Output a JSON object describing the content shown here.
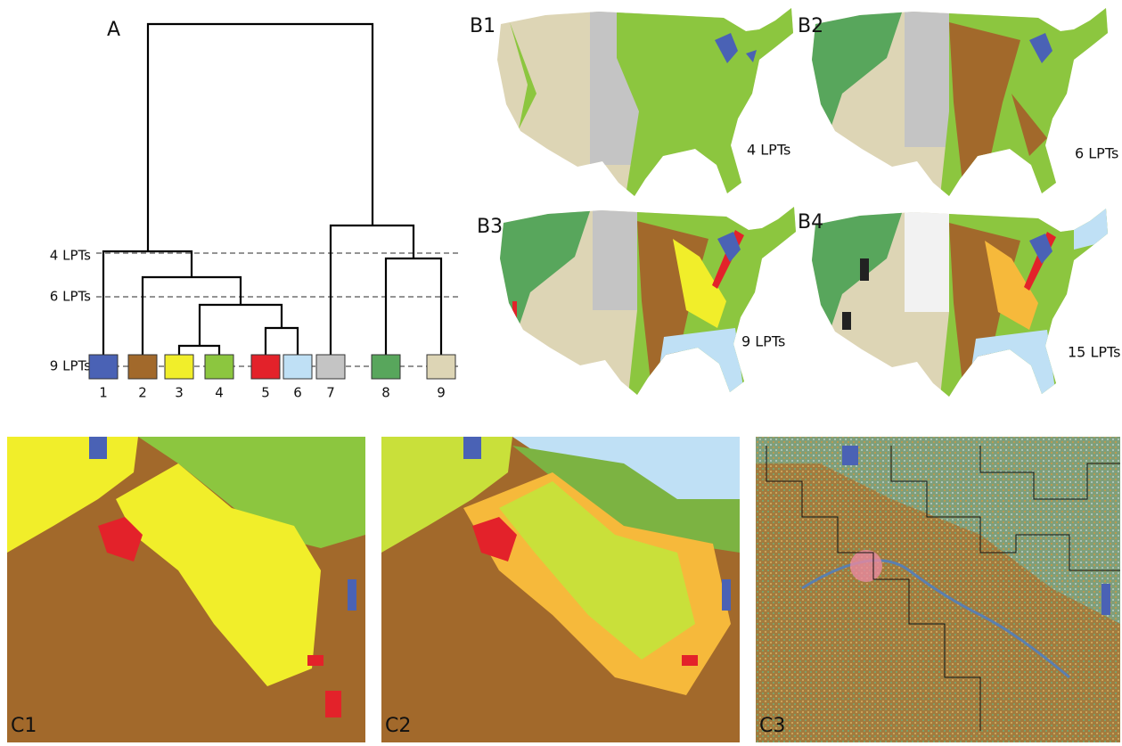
{
  "panel_a": {
    "label": "A",
    "levels": [
      "4 LPTs",
      "6 LPTs",
      "9 LPTs"
    ],
    "leaves": [
      "1",
      "2",
      "3",
      "4",
      "5",
      "6",
      "7",
      "8",
      "9"
    ]
  },
  "maps": [
    {
      "label": "B1",
      "caption": "4 LPTs"
    },
    {
      "label": "B2",
      "caption": "6 LPTs"
    },
    {
      "label": "B3",
      "caption": "9 LPTs"
    },
    {
      "label": "B4",
      "caption": "15 LPTs"
    }
  ],
  "details": [
    {
      "label": "C1"
    },
    {
      "label": "C2"
    },
    {
      "label": "C3"
    }
  ]
}
